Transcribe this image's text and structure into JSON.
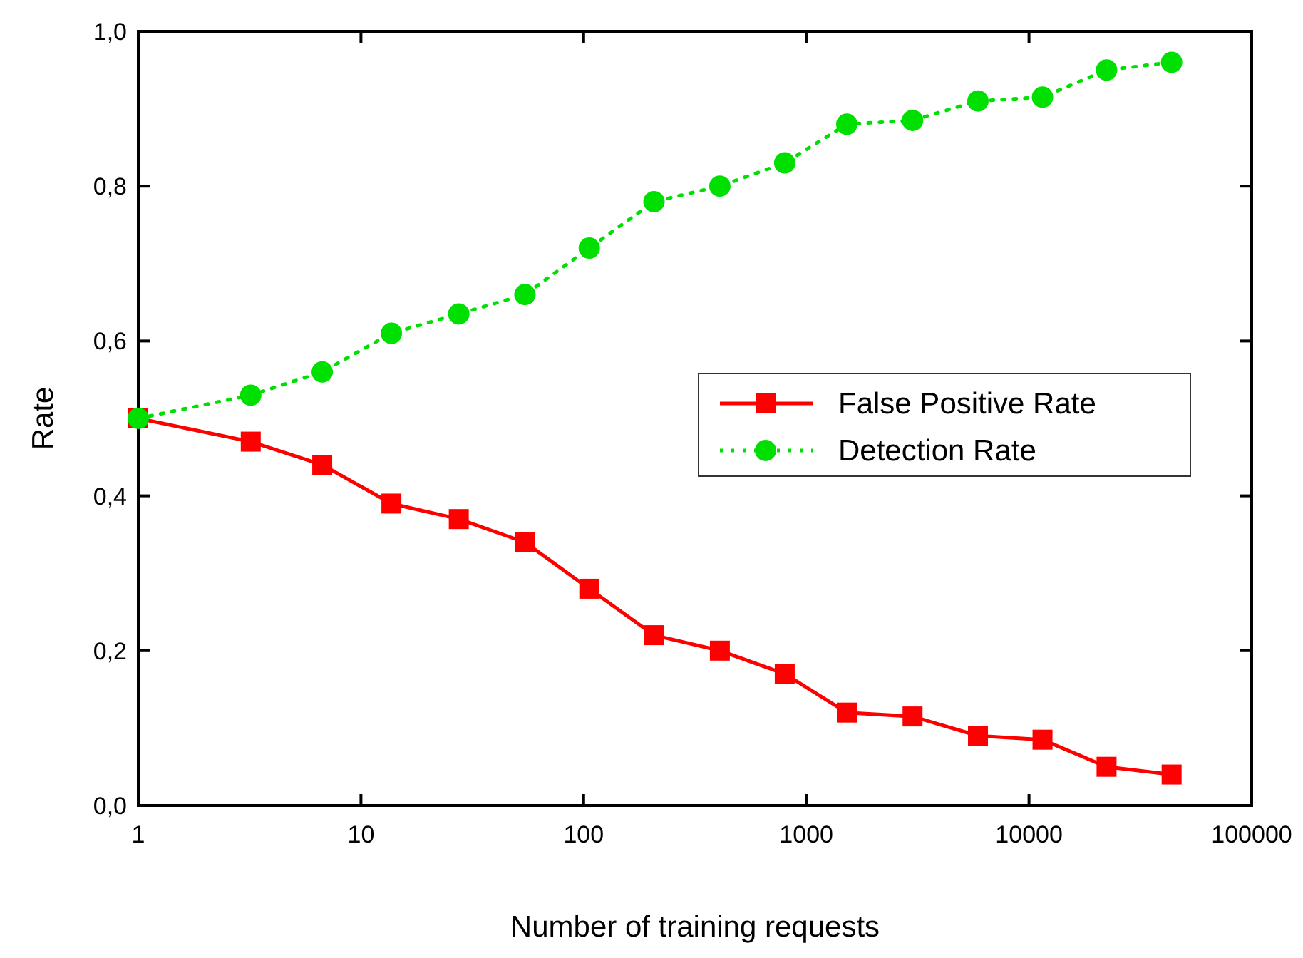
{
  "chart_data": {
    "type": "line",
    "xlabel": "Number of training requests",
    "ylabel": "Rate",
    "log": "x",
    "x": [
      1,
      3.2,
      6.7,
      13.7,
      27.5,
      54.5,
      106,
      207,
      409,
      800,
      1520,
      3000,
      5900,
      11500,
      22300,
      43700
    ],
    "xlim": [
      1,
      100000
    ],
    "xticks": [
      1,
      10,
      100,
      1000,
      10000,
      100000
    ],
    "ylim": [
      0,
      1
    ],
    "yticks": [
      {
        "value": 0,
        "label": "0,0"
      },
      {
        "value": 0.2,
        "label": "0,2"
      },
      {
        "value": 0.4,
        "label": "0,4"
      },
      {
        "value": 0.6,
        "label": "0,6"
      },
      {
        "value": 0.8,
        "label": "0,8"
      },
      {
        "value": 1,
        "label": "1,0"
      }
    ],
    "grid": false,
    "legend": "right",
    "series": [
      {
        "name": "False Positive Rate",
        "color": "#ff0000",
        "marker": "square",
        "line_style": "solid",
        "values": [
          0.5,
          0.47,
          0.44,
          0.39,
          0.37,
          0.34,
          0.28,
          0.22,
          0.2,
          0.17,
          0.12,
          0.115,
          0.09,
          0.085,
          0.05,
          0.04
        ]
      },
      {
        "name": "Detection Rate",
        "color": "#00e000",
        "marker": "circle",
        "line_style": "dotted",
        "values": [
          0.5,
          0.53,
          0.56,
          0.61,
          0.635,
          0.66,
          0.72,
          0.78,
          0.8,
          0.83,
          0.88,
          0.885,
          0.91,
          0.915,
          0.95,
          0.96
        ]
      }
    ]
  }
}
